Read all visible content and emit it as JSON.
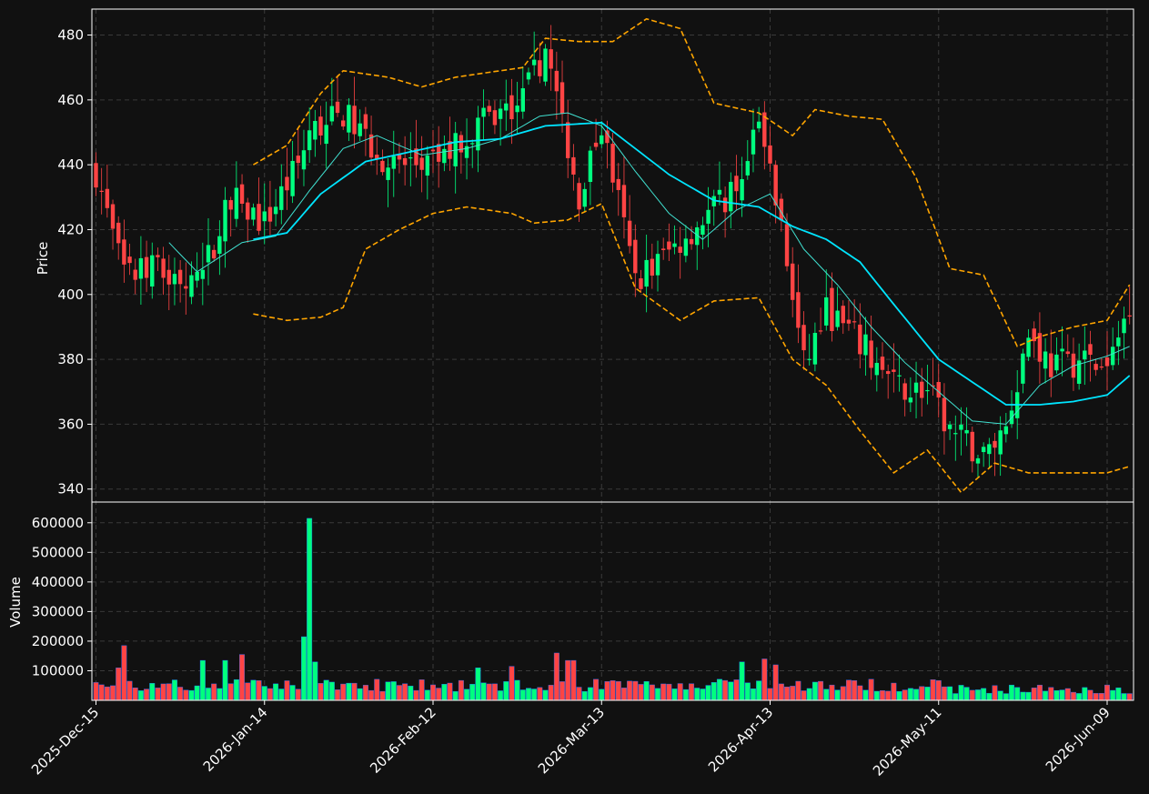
{
  "colors": {
    "background": "#111111",
    "frame": "#ffffff",
    "grid": "#3a3a3a",
    "up": "#00ff7f",
    "down": "#ff4444",
    "ma_fast": "#40e0d0",
    "ma_slow": "#00e5ff",
    "bands": "#ffa500"
  },
  "chart_data": {
    "type": "candlestick",
    "panels": [
      "price",
      "volume"
    ],
    "ylabel_price": "Price",
    "ylabel_volume": "Volume",
    "price_ylim": [
      336,
      488
    ],
    "volume_ylim": [
      0,
      670000
    ],
    "price_ticks": [
      "480",
      "460",
      "440",
      "420",
      "400",
      "380",
      "360",
      "340"
    ],
    "volume_ticks": [
      "600000",
      "500000",
      "400000",
      "300000",
      "200000",
      "100000"
    ],
    "x_ticks": [
      {
        "label": "2025-Dec-15",
        "index": 0
      },
      {
        "label": "2026-Jan-14",
        "index": 30
      },
      {
        "label": "2026-Feb-12",
        "index": 60
      },
      {
        "label": "2026-Mar-13",
        "index": 90
      },
      {
        "label": "2026-Apr-13",
        "index": 120
      },
      {
        "label": "2026-May-11",
        "index": 150
      },
      {
        "label": "2026-Jun-09",
        "index": 180
      }
    ],
    "grid": true,
    "n_candles": 185,
    "ohlc_knots": [
      {
        "i": 0,
        "close": 438
      },
      {
        "i": 5,
        "close": 405
      },
      {
        "i": 10,
        "close": 408
      },
      {
        "i": 18,
        "close": 402
      },
      {
        "i": 24,
        "close": 430
      },
      {
        "i": 30,
        "close": 422
      },
      {
        "i": 36,
        "close": 440
      },
      {
        "i": 38,
        "close": 450
      },
      {
        "i": 44,
        "close": 456
      },
      {
        "i": 52,
        "close": 440
      },
      {
        "i": 60,
        "close": 440
      },
      {
        "i": 68,
        "close": 452
      },
      {
        "i": 76,
        "close": 460
      },
      {
        "i": 80,
        "close": 476
      },
      {
        "i": 86,
        "close": 430
      },
      {
        "i": 90,
        "close": 452
      },
      {
        "i": 96,
        "close": 405
      },
      {
        "i": 100,
        "close": 410
      },
      {
        "i": 106,
        "close": 420
      },
      {
        "i": 112,
        "close": 430
      },
      {
        "i": 116,
        "close": 440
      },
      {
        "i": 118,
        "close": 452
      },
      {
        "i": 122,
        "close": 420
      },
      {
        "i": 126,
        "close": 378
      },
      {
        "i": 130,
        "close": 395
      },
      {
        "i": 136,
        "close": 385
      },
      {
        "i": 142,
        "close": 372
      },
      {
        "i": 148,
        "close": 370
      },
      {
        "i": 152,
        "close": 358
      },
      {
        "i": 158,
        "close": 350
      },
      {
        "i": 162,
        "close": 360
      },
      {
        "i": 166,
        "close": 388
      },
      {
        "i": 170,
        "close": 378
      },
      {
        "i": 176,
        "close": 380
      },
      {
        "i": 180,
        "close": 376
      },
      {
        "i": 184,
        "close": 398
      }
    ],
    "ma_fast_knots": [
      {
        "i": 13,
        "v": 416
      },
      {
        "i": 18,
        "v": 407
      },
      {
        "i": 26,
        "v": 416
      },
      {
        "i": 32,
        "v": 418
      },
      {
        "i": 38,
        "v": 432
      },
      {
        "i": 44,
        "v": 445
      },
      {
        "i": 50,
        "v": 449
      },
      {
        "i": 58,
        "v": 443
      },
      {
        "i": 66,
        "v": 445
      },
      {
        "i": 72,
        "v": 448
      },
      {
        "i": 79,
        "v": 455
      },
      {
        "i": 84,
        "v": 456
      },
      {
        "i": 90,
        "v": 452
      },
      {
        "i": 96,
        "v": 438
      },
      {
        "i": 102,
        "v": 425
      },
      {
        "i": 108,
        "v": 417
      },
      {
        "i": 114,
        "v": 426
      },
      {
        "i": 120,
        "v": 431
      },
      {
        "i": 126,
        "v": 414
      },
      {
        "i": 132,
        "v": 403
      },
      {
        "i": 138,
        "v": 390
      },
      {
        "i": 144,
        "v": 379
      },
      {
        "i": 150,
        "v": 370
      },
      {
        "i": 156,
        "v": 361
      },
      {
        "i": 162,
        "v": 360
      },
      {
        "i": 168,
        "v": 372
      },
      {
        "i": 174,
        "v": 378
      },
      {
        "i": 180,
        "v": 381
      },
      {
        "i": 184,
        "v": 384
      }
    ],
    "ma_slow_knots": [
      {
        "i": 28,
        "v": 417
      },
      {
        "i": 34,
        "v": 419
      },
      {
        "i": 40,
        "v": 431
      },
      {
        "i": 48,
        "v": 441
      },
      {
        "i": 56,
        "v": 444
      },
      {
        "i": 64,
        "v": 447
      },
      {
        "i": 72,
        "v": 448
      },
      {
        "i": 80,
        "v": 452
      },
      {
        "i": 90,
        "v": 453
      },
      {
        "i": 96,
        "v": 445
      },
      {
        "i": 102,
        "v": 437
      },
      {
        "i": 110,
        "v": 429
      },
      {
        "i": 118,
        "v": 427
      },
      {
        "i": 124,
        "v": 421
      },
      {
        "i": 130,
        "v": 417
      },
      {
        "i": 136,
        "v": 410
      },
      {
        "i": 142,
        "v": 397
      },
      {
        "i": 150,
        "v": 380
      },
      {
        "i": 156,
        "v": 373
      },
      {
        "i": 162,
        "v": 366
      },
      {
        "i": 168,
        "v": 366
      },
      {
        "i": 174,
        "v": 367
      },
      {
        "i": 180,
        "v": 369
      },
      {
        "i": 184,
        "v": 375
      }
    ],
    "upper_band_knots": [
      {
        "i": 28,
        "v": 440
      },
      {
        "i": 34,
        "v": 446
      },
      {
        "i": 40,
        "v": 462
      },
      {
        "i": 44,
        "v": 469
      },
      {
        "i": 52,
        "v": 467
      },
      {
        "i": 58,
        "v": 464
      },
      {
        "i": 64,
        "v": 467
      },
      {
        "i": 68,
        "v": 468
      },
      {
        "i": 76,
        "v": 470
      },
      {
        "i": 80,
        "v": 479
      },
      {
        "i": 86,
        "v": 478
      },
      {
        "i": 92,
        "v": 478
      },
      {
        "i": 98,
        "v": 485
      },
      {
        "i": 104,
        "v": 482
      },
      {
        "i": 110,
        "v": 459
      },
      {
        "i": 118,
        "v": 456
      },
      {
        "i": 124,
        "v": 449
      },
      {
        "i": 128,
        "v": 457
      },
      {
        "i": 134,
        "v": 455
      },
      {
        "i": 140,
        "v": 454
      },
      {
        "i": 146,
        "v": 436
      },
      {
        "i": 152,
        "v": 408
      },
      {
        "i": 158,
        "v": 406
      },
      {
        "i": 164,
        "v": 384
      },
      {
        "i": 168,
        "v": 387
      },
      {
        "i": 174,
        "v": 390
      },
      {
        "i": 180,
        "v": 392
      },
      {
        "i": 184,
        "v": 403
      }
    ],
    "lower_band_knots": [
      {
        "i": 28,
        "v": 394
      },
      {
        "i": 34,
        "v": 392
      },
      {
        "i": 40,
        "v": 393
      },
      {
        "i": 44,
        "v": 396
      },
      {
        "i": 48,
        "v": 414
      },
      {
        "i": 54,
        "v": 420
      },
      {
        "i": 60,
        "v": 425
      },
      {
        "i": 66,
        "v": 427
      },
      {
        "i": 74,
        "v": 425
      },
      {
        "i": 78,
        "v": 422
      },
      {
        "i": 84,
        "v": 423
      },
      {
        "i": 90,
        "v": 428
      },
      {
        "i": 96,
        "v": 402
      },
      {
        "i": 104,
        "v": 392
      },
      {
        "i": 110,
        "v": 398
      },
      {
        "i": 118,
        "v": 399
      },
      {
        "i": 124,
        "v": 380
      },
      {
        "i": 130,
        "v": 372
      },
      {
        "i": 136,
        "v": 358
      },
      {
        "i": 142,
        "v": 345
      },
      {
        "i": 148,
        "v": 352
      },
      {
        "i": 154,
        "v": 339
      },
      {
        "i": 160,
        "v": 348
      },
      {
        "i": 166,
        "v": 345
      },
      {
        "i": 172,
        "v": 345
      },
      {
        "i": 180,
        "v": 345
      },
      {
        "i": 184,
        "v": 347
      }
    ],
    "volume_base": 55000,
    "volume_spikes": [
      {
        "i": 5,
        "v": 185000
      },
      {
        "i": 4,
        "v": 110000
      },
      {
        "i": 19,
        "v": 135000
      },
      {
        "i": 23,
        "v": 135000
      },
      {
        "i": 26,
        "v": 155000
      },
      {
        "i": 37,
        "v": 215000
      },
      {
        "i": 38,
        "v": 615000
      },
      {
        "i": 39,
        "v": 130000
      },
      {
        "i": 68,
        "v": 110000
      },
      {
        "i": 74,
        "v": 115000
      },
      {
        "i": 82,
        "v": 160000
      },
      {
        "i": 84,
        "v": 135000
      },
      {
        "i": 85,
        "v": 135000
      },
      {
        "i": 115,
        "v": 130000
      },
      {
        "i": 119,
        "v": 140000
      },
      {
        "i": 121,
        "v": 120000
      }
    ]
  }
}
